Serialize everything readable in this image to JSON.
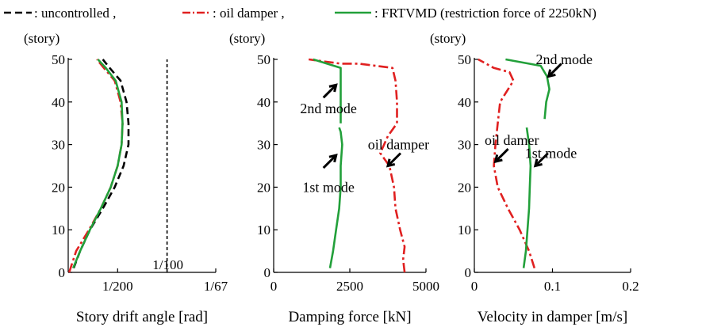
{
  "legend": [
    {
      "label": ": uncontrolled ,",
      "color": "#000000",
      "dash": "dashed"
    },
    {
      "label": ": oil damper ,",
      "color": "#e02020",
      "dash": "dashdot"
    },
    {
      "label": ": FRTVMD (restriction force of 2250kN)",
      "color": "#22a03a",
      "dash": "solid"
    }
  ],
  "colors": {
    "uncontrolled": "#000000",
    "oil_damper": "#e02020",
    "frtvmd": "#22a03a"
  },
  "chart_data": [
    {
      "type": "line",
      "ylabel": "(story)",
      "xlabel": "Story drift angle [rad]",
      "ylim": [
        0,
        50
      ],
      "xlim": [
        0,
        0.0149254
      ],
      "yticks": [
        0,
        10,
        20,
        30,
        40,
        50
      ],
      "xticks": [
        {
          "value": 0.005,
          "label": "1/200"
        },
        {
          "value": 0.0149254,
          "label": "1/67"
        }
      ],
      "reference_line": {
        "x": 0.01,
        "label": "1/100"
      },
      "series": [
        {
          "key": "uncontrolled",
          "points": [
            [
              0.00055,
              1
            ],
            [
              0.0012,
              5
            ],
            [
              0.0022,
              10
            ],
            [
              0.0035,
              15
            ],
            [
              0.0047,
              20
            ],
            [
              0.0056,
              25
            ],
            [
              0.0061,
              30
            ],
            [
              0.0061,
              35
            ],
            [
              0.0059,
              40
            ],
            [
              0.0053,
              45
            ],
            [
              0.0042,
              48
            ],
            [
              0.0035,
              50
            ]
          ]
        },
        {
          "key": "oil_damper",
          "points": [
            [
              0.0001,
              0
            ],
            [
              0.0008,
              5
            ],
            [
              0.0021,
              10
            ],
            [
              0.0033,
              15
            ],
            [
              0.0043,
              20
            ],
            [
              0.005,
              25
            ],
            [
              0.0054,
              30
            ],
            [
              0.0055,
              35
            ],
            [
              0.0053,
              40
            ],
            [
              0.0047,
              45
            ],
            [
              0.0036,
              48
            ],
            [
              0.0029,
              50
            ]
          ]
        },
        {
          "key": "frtvmd",
          "points": [
            [
              0.0005,
              1
            ],
            [
              0.0012,
              5
            ],
            [
              0.0022,
              10
            ],
            [
              0.0033,
              15
            ],
            [
              0.0043,
              20
            ],
            [
              0.005,
              25
            ],
            [
              0.0054,
              30
            ],
            [
              0.0055,
              35
            ],
            [
              0.0054,
              40
            ],
            [
              0.0048,
              45
            ],
            [
              0.0038,
              48
            ],
            [
              0.003,
              50
            ]
          ]
        }
      ]
    },
    {
      "type": "line",
      "ylabel": "(story)",
      "xlabel": "Damping force [kN]",
      "ylim": [
        0,
        50
      ],
      "xlim": [
        0,
        5000
      ],
      "yticks": [
        0,
        10,
        20,
        30,
        40,
        50
      ],
      "xticks": [
        {
          "value": 0,
          "label": "0"
        },
        {
          "value": 2500,
          "label": "2500"
        },
        {
          "value": 5000,
          "label": "5000"
        }
      ],
      "annotations": [
        {
          "label": "2nd mode",
          "x": 1800,
          "y": 38.5,
          "arrow_to": [
            2050,
            44
          ]
        },
        {
          "label": "1st mode",
          "x": 1800,
          "y": 20,
          "arrow_to": [
            2050,
            27.5
          ]
        },
        {
          "label": "oil damper",
          "x": 4100,
          "y": 30,
          "arrow_to": [
            3750,
            25
          ]
        }
      ],
      "series": [
        {
          "key": "oil_damper",
          "points": [
            [
              4300,
              0
            ],
            [
              4250,
              3
            ],
            [
              4300,
              6
            ],
            [
              4150,
              10
            ],
            [
              4000,
              15
            ],
            [
              3950,
              20
            ],
            [
              3800,
              25
            ],
            [
              3500,
              28
            ],
            [
              3750,
              32
            ],
            [
              4050,
              35
            ],
            [
              4050,
              40
            ],
            [
              4000,
              45
            ],
            [
              3900,
              48
            ],
            [
              2800,
              49
            ],
            [
              2200,
              49
            ],
            [
              1150,
              50
            ]
          ]
        },
        {
          "key": "frtvmd",
          "points": [
            [
              1850,
              1
            ],
            [
              1950,
              5
            ],
            [
              2050,
              10
            ],
            [
              2150,
              15
            ],
            [
              2200,
              20
            ],
            [
              2200,
              25
            ],
            [
              2250,
              30
            ],
            [
              2200,
              33
            ],
            [
              2150,
              34
            ],
            [
              null,
              null
            ],
            [
              2200,
              35
            ],
            [
              2200,
              40
            ],
            [
              2200,
              45
            ],
            [
              2200,
              48
            ],
            [
              1300,
              50
            ]
          ]
        }
      ]
    },
    {
      "type": "line",
      "ylabel": "(story)",
      "xlabel": "Velocity in damper [m/s]",
      "ylim": [
        0,
        50
      ],
      "xlim": [
        0,
        0.2
      ],
      "yticks": [
        0,
        10,
        20,
        30,
        40,
        50
      ],
      "xticks": [
        {
          "value": 0,
          "label": "0"
        },
        {
          "value": 0.1,
          "label": "0.1"
        },
        {
          "value": 0.2,
          "label": "0.2"
        }
      ],
      "annotations": [
        {
          "label": "2nd mode",
          "x": 0.115,
          "y": 50,
          "arrow_to": [
            0.095,
            46
          ]
        },
        {
          "label": "oil damer",
          "x": 0.048,
          "y": 31,
          "arrow_to": [
            0.027,
            26
          ]
        },
        {
          "label": "1st mode",
          "x": 0.098,
          "y": 28,
          "arrow_to": [
            0.078,
            25
          ]
        }
      ],
      "series": [
        {
          "key": "oil_damper",
          "points": [
            [
              0.077,
              1
            ],
            [
              0.07,
              5
            ],
            [
              0.058,
              10
            ],
            [
              0.043,
              15
            ],
            [
              0.03,
              20
            ],
            [
              0.025,
              25
            ],
            [
              0.027,
              30
            ],
            [
              0.03,
              35
            ],
            [
              0.033,
              40
            ],
            [
              0.05,
              45
            ],
            [
              0.045,
              47
            ],
            [
              0.025,
              48
            ],
            [
              0.005,
              50
            ]
          ]
        },
        {
          "key": "frtvmd",
          "points": [
            [
              0.063,
              1
            ],
            [
              0.066,
              5
            ],
            [
              0.068,
              10
            ],
            [
              0.07,
              15
            ],
            [
              0.071,
              20
            ],
            [
              0.072,
              25
            ],
            [
              0.07,
              30
            ],
            [
              0.067,
              34
            ],
            [
              null,
              null
            ],
            [
              0.09,
              36
            ],
            [
              0.092,
              40
            ],
            [
              0.096,
              43
            ],
            [
              0.093,
              46
            ],
            [
              0.085,
              48.5
            ],
            [
              0.04,
              50
            ]
          ]
        }
      ]
    }
  ]
}
